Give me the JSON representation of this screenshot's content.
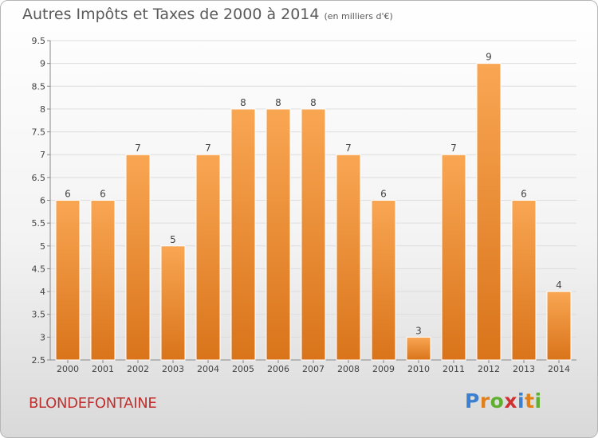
{
  "header": {
    "title": "Autres Impôts et Taxes de 2000 à 2014",
    "unit": "(en milliers d'€)"
  },
  "commune": "BLONDEFONTAINE",
  "logo": {
    "text": "Proxiti",
    "letter_colors": [
      "#3a7fd0",
      "#e0801a",
      "#60b030",
      "#d03030",
      "#3a7fd0",
      "#e0801a",
      "#60b030"
    ]
  },
  "colors": {
    "bar_top": "#f9a653",
    "bar_bottom": "#d9741a",
    "grid": "#dddddd",
    "axis": "#888888"
  },
  "chart_data": {
    "type": "bar",
    "categories": [
      "2000",
      "2001",
      "2002",
      "2003",
      "2004",
      "2005",
      "2006",
      "2007",
      "2008",
      "2009",
      "2010",
      "2011",
      "2012",
      "2013",
      "2014"
    ],
    "values": [
      6,
      6,
      7,
      5,
      7,
      8,
      8,
      8,
      7,
      6,
      3,
      7,
      9,
      6,
      4
    ],
    "value_labels": [
      "6",
      "6",
      "7",
      "5",
      "7",
      "8",
      "8",
      "8",
      "7",
      "6",
      "3",
      "7",
      "9",
      "6",
      "4"
    ],
    "yticks": [
      "2.5",
      "3",
      "3.5",
      "4",
      "4.5",
      "5",
      "5.5",
      "6",
      "6.5",
      "7",
      "7.5",
      "8",
      "8.5",
      "9",
      "9.5"
    ],
    "ylim": [
      2.5,
      9.5
    ],
    "grid": true
  }
}
